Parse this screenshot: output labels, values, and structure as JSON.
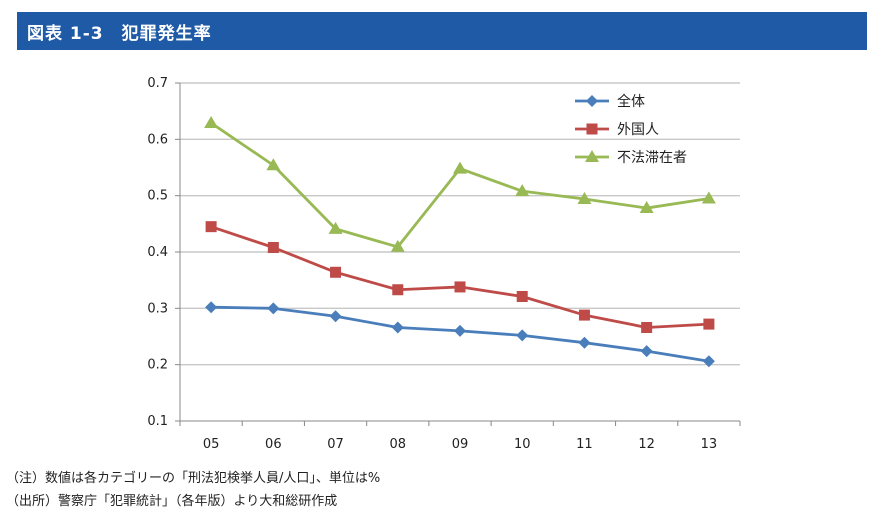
{
  "header": {
    "title": "図表 1-3　犯罪発生率"
  },
  "chart_data": {
    "type": "line",
    "title": "図表 1-3　犯罪発生率",
    "xlabel": "",
    "ylabel": "",
    "categories": [
      "05",
      "06",
      "07",
      "08",
      "09",
      "10",
      "11",
      "12",
      "13"
    ],
    "ylim": [
      0.1,
      0.7
    ],
    "yticks": [
      "0.1",
      "0.2",
      "0.3",
      "0.4",
      "0.5",
      "0.6",
      "0.7"
    ],
    "grid": true,
    "legend_position": "top-right",
    "series": [
      {
        "name": "全体",
        "marker": "diamond",
        "color": "#4a7ebb",
        "values": [
          0.302,
          0.3,
          0.286,
          0.266,
          0.26,
          0.252,
          0.239,
          0.224,
          0.206
        ]
      },
      {
        "name": "外国人",
        "marker": "square",
        "color": "#be4b48",
        "values": [
          0.445,
          0.408,
          0.364,
          0.333,
          0.338,
          0.321,
          0.288,
          0.266,
          0.272
        ]
      },
      {
        "name": "不法滞在者",
        "marker": "triangle",
        "color": "#98b954",
        "values": [
          0.629,
          0.554,
          0.441,
          0.409,
          0.548,
          0.508,
          0.494,
          0.478,
          0.495
        ]
      }
    ]
  },
  "notes": {
    "note1": "（注）数値は各カテゴリーの「刑法犯検挙人員/人口」、単位は%",
    "note2": "（出所）警察庁「犯罪統計」（各年版）より大和総研作成"
  }
}
